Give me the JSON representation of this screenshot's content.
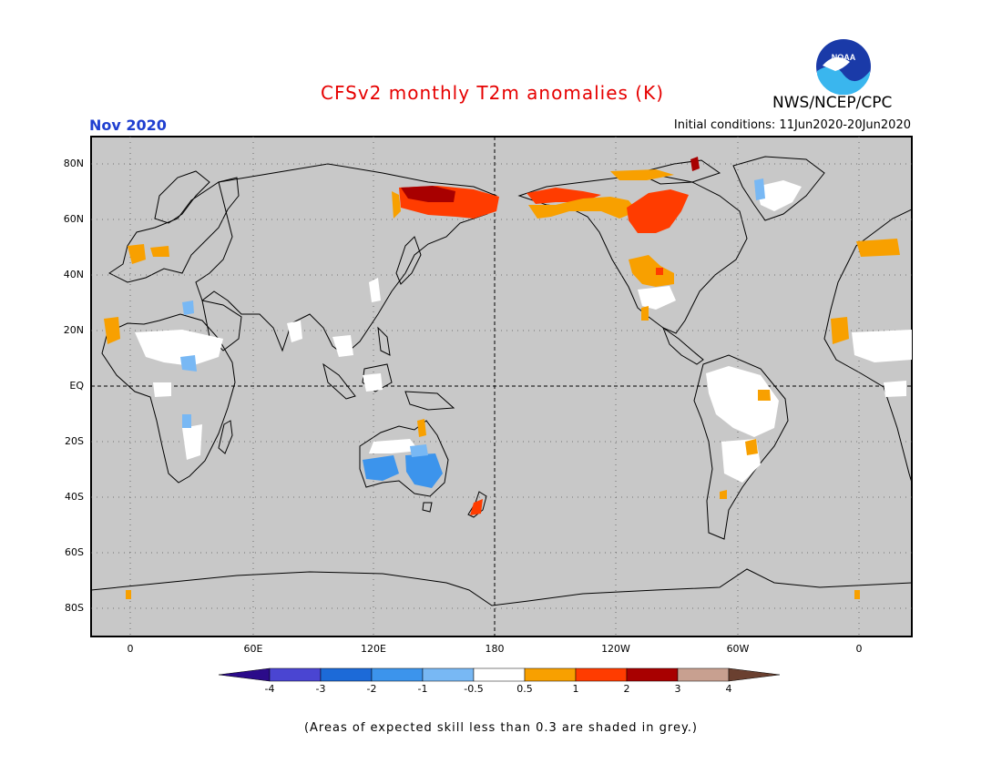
{
  "header": {
    "title": "CFSv2 monthly T2m anomalies (K)",
    "title_color": "#e60000",
    "month": "Nov 2020",
    "month_color": "#1f3fd0",
    "initial_conditions": "Initial conditions: 11Jun2020-20Jun2020",
    "agency": "NWS/NCEP/CPC",
    "logo_text": "NOAA"
  },
  "map": {
    "background_color": "#c8c8c8",
    "lat_labels": [
      "80N",
      "60N",
      "40N",
      "20N",
      "EQ",
      "20S",
      "40S",
      "60S",
      "80S"
    ],
    "lon_labels": [
      "0",
      "60E",
      "120E",
      "180",
      "120W",
      "60W",
      "0"
    ]
  },
  "colorbar": {
    "colors": [
      "#2b0b8a",
      "#4a45d2",
      "#1c6ad8",
      "#3c94ec",
      "#78b8f4",
      "#ffffff",
      "#f8a000",
      "#ff3c00",
      "#a80000",
      "#c8a090",
      "#6a4030"
    ],
    "labels": [
      "-4",
      "-3",
      "-2",
      "-1",
      "-0.5",
      "0.5",
      "1",
      "2",
      "3",
      "4"
    ]
  },
  "footnote": "(Areas of expected skill less than 0.3 are shaded in grey.)"
}
